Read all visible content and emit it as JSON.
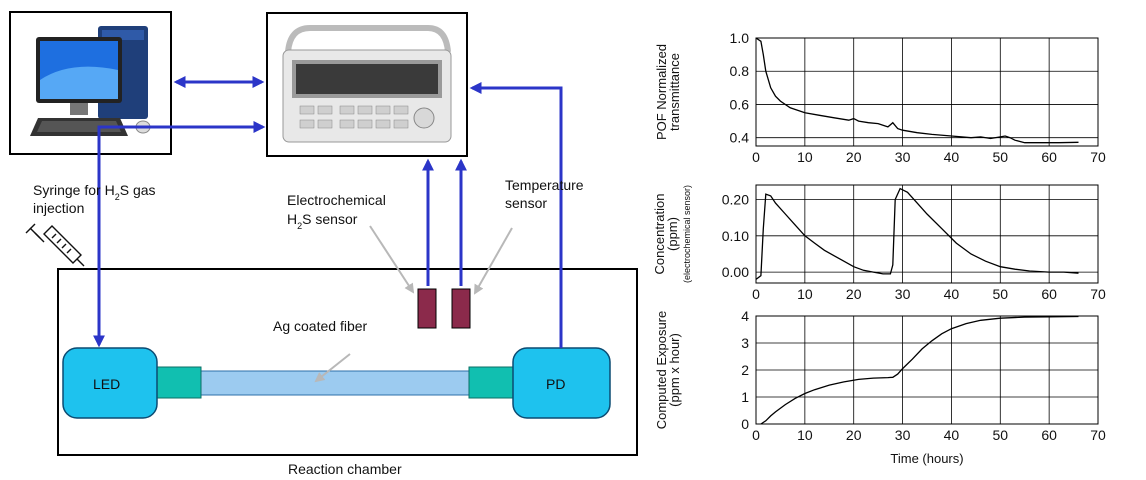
{
  "diagram": {
    "syringe_label_line1_a": "Syringe for H",
    "syringe_label_sub": "2",
    "syringe_label_line1_b": "S gas",
    "syringe_label_line2": "injection",
    "ec_sensor_line1": "Electrochemical",
    "ec_sensor_line2_a": "H",
    "ec_sensor_line2_sub": "2",
    "ec_sensor_line2_b": "S sensor",
    "temp_sensor_line1": "Temperature",
    "temp_sensor_line2": "sensor",
    "fiber_label": "Ag coated fiber",
    "led_label": "LED",
    "pd_label": "PD",
    "chamber_label": "Reaction chamber",
    "colors": {
      "led_pd": "#1ec2ee",
      "coupler": "#11bfb0",
      "fiber": "#9ccbf0",
      "sensor": "#8b2a4b",
      "wire": "#2b35c8"
    }
  },
  "chart_data": [
    {
      "type": "line",
      "ylabel": [
        "POF Normalized",
        "transmittance"
      ],
      "xlim": [
        0,
        70
      ],
      "ylim": [
        0.35,
        1.0
      ],
      "yticks": [
        0.4,
        0.6,
        0.8,
        1.0
      ],
      "ytick_labels": [
        "0.4",
        "0.6",
        "0.8",
        "1.0"
      ],
      "xticks": [
        0,
        10,
        20,
        30,
        40,
        50,
        60,
        70
      ],
      "xtick_labels": [
        "0",
        "10",
        "20",
        "30",
        "40",
        "50",
        "60",
        "70"
      ],
      "grid": true,
      "x": [
        0,
        1,
        1.5,
        2,
        3,
        4,
        5,
        7,
        10,
        13,
        16,
        19,
        20,
        21,
        23,
        25,
        27,
        28,
        29,
        30,
        33,
        36,
        40,
        44,
        46,
        48,
        50,
        51,
        52,
        53,
        55,
        58,
        62,
        66
      ],
      "y": [
        1.0,
        0.98,
        0.9,
        0.8,
        0.7,
        0.65,
        0.62,
        0.58,
        0.55,
        0.535,
        0.52,
        0.505,
        0.515,
        0.5,
        0.49,
        0.485,
        0.465,
        0.49,
        0.455,
        0.445,
        0.43,
        0.42,
        0.41,
        0.4,
        0.405,
        0.395,
        0.405,
        0.41,
        0.4,
        0.385,
        0.37,
        0.37,
        0.37,
        0.372
      ]
    },
    {
      "type": "line",
      "ylabel": [
        "Concentration",
        "(ppm)",
        "(electrochemical sensor)"
      ],
      "xlim": [
        0,
        70
      ],
      "ylim": [
        -0.03,
        0.24
      ],
      "yticks": [
        0.0,
        0.1,
        0.2
      ],
      "ytick_labels": [
        "0.00",
        "0.10",
        "0.20"
      ],
      "xticks": [
        0,
        10,
        20,
        30,
        40,
        50,
        60,
        70
      ],
      "xtick_labels": [
        "0",
        "10",
        "20",
        "30",
        "40",
        "50",
        "60",
        "70"
      ],
      "grid": true,
      "x": [
        0,
        1,
        1.5,
        2,
        3,
        4,
        6,
        8,
        10,
        12,
        14,
        16,
        18,
        20,
        22,
        24,
        26,
        27.5,
        28,
        28.5,
        29.5,
        31,
        33,
        35,
        38,
        41,
        44,
        47,
        50,
        53,
        56,
        60,
        63,
        66
      ],
      "y": [
        -0.02,
        -0.01,
        0.12,
        0.215,
        0.21,
        0.19,
        0.16,
        0.13,
        0.1,
        0.08,
        0.06,
        0.045,
        0.03,
        0.015,
        0.005,
        0.0,
        -0.005,
        -0.005,
        0.02,
        0.2,
        0.23,
        0.22,
        0.19,
        0.16,
        0.12,
        0.08,
        0.05,
        0.03,
        0.015,
        0.008,
        0.003,
        0.0,
        0.0,
        -0.003
      ]
    },
    {
      "type": "line",
      "ylabel": [
        "Computed Exposure",
        "(ppm x hour)"
      ],
      "xlabel": "Time (hours)",
      "xlim": [
        0,
        70
      ],
      "ylim": [
        0,
        4
      ],
      "yticks": [
        0,
        1,
        2,
        3,
        4
      ],
      "ytick_labels": [
        "0",
        "1",
        "2",
        "3",
        "4"
      ],
      "xticks": [
        0,
        10,
        20,
        30,
        40,
        50,
        60,
        70
      ],
      "xtick_labels": [
        "0",
        "10",
        "20",
        "30",
        "40",
        "50",
        "60",
        "70"
      ],
      "grid": true,
      "x": [
        1,
        2,
        3,
        4,
        6,
        8,
        10,
        12,
        15,
        18,
        21,
        24,
        27,
        28,
        29,
        30,
        32,
        34,
        36,
        38,
        40,
        43,
        46,
        50,
        55,
        60,
        66
      ],
      "y": [
        0.0,
        0.12,
        0.3,
        0.45,
        0.72,
        0.95,
        1.13,
        1.27,
        1.44,
        1.56,
        1.65,
        1.7,
        1.72,
        1.73,
        1.85,
        2.05,
        2.4,
        2.78,
        3.08,
        3.34,
        3.53,
        3.72,
        3.84,
        3.92,
        3.96,
        3.97,
        3.98
      ]
    }
  ]
}
